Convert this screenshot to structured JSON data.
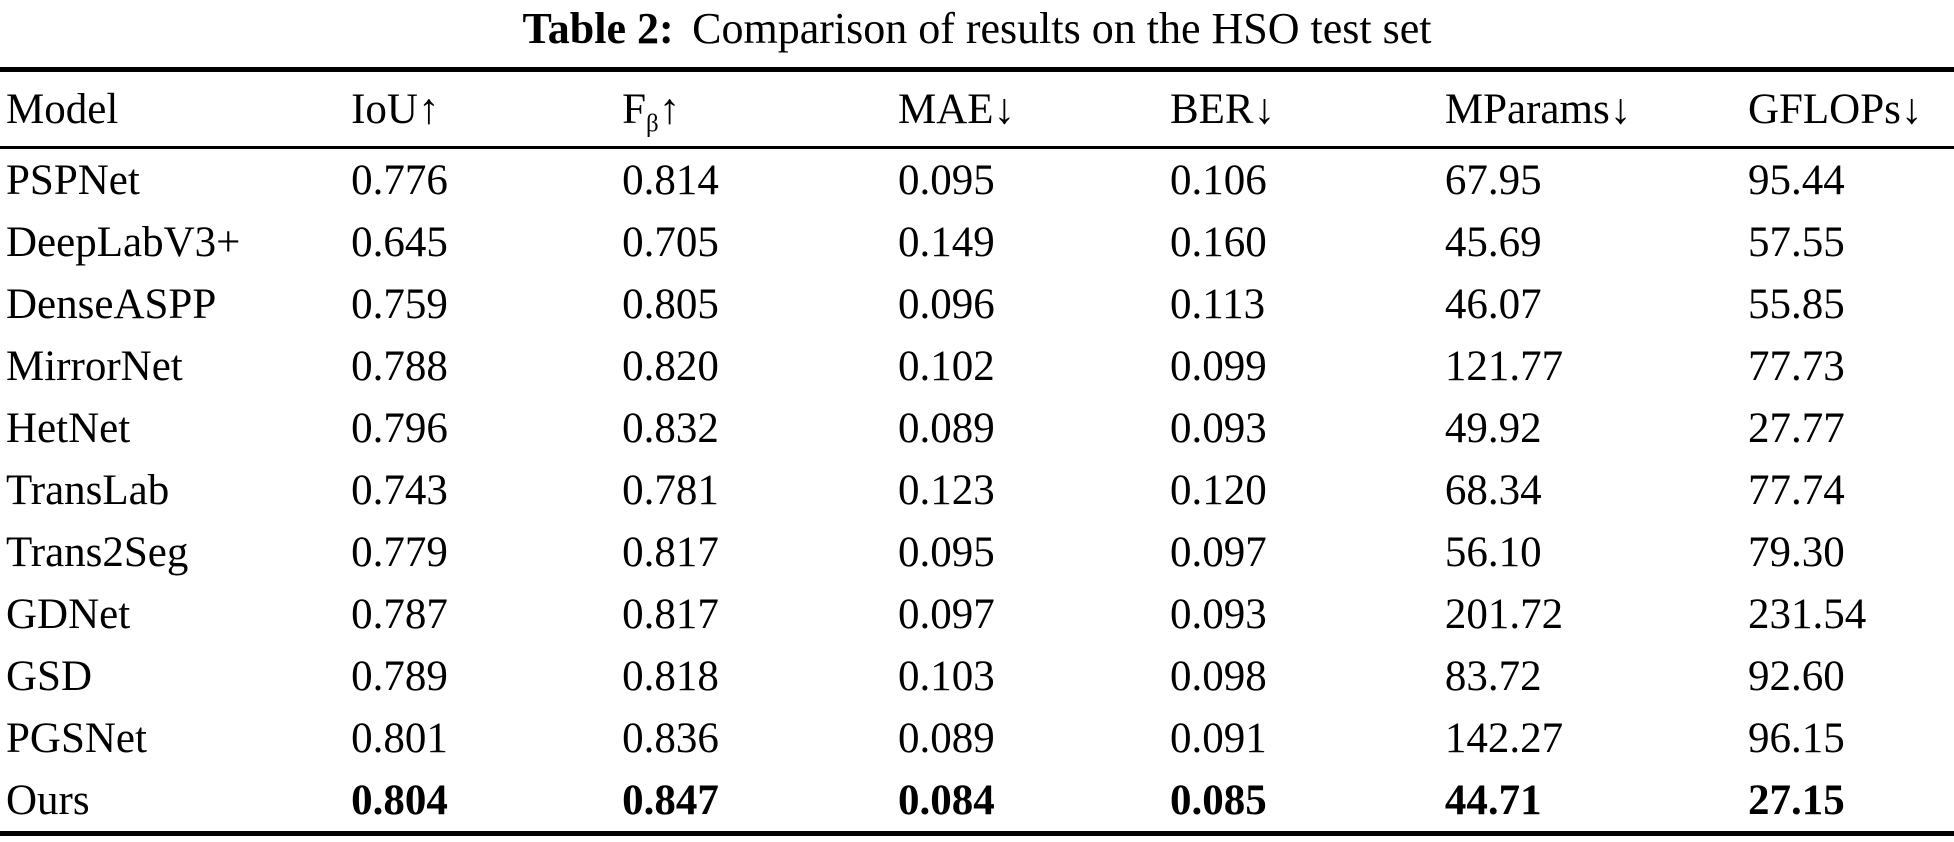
{
  "caption": {
    "label": "Table 2:",
    "text": "Comparison of results on the HSO test set"
  },
  "table": {
    "columns": [
      {
        "label": "Model",
        "sub": "",
        "arrow": ""
      },
      {
        "label": "IoU",
        "sub": "",
        "arrow": "↑"
      },
      {
        "label": "F",
        "sub": "β",
        "arrow": "↑"
      },
      {
        "label": "MAE",
        "sub": "",
        "arrow": "↓"
      },
      {
        "label": "BER",
        "sub": "",
        "arrow": "↓"
      },
      {
        "label": "MParams",
        "sub": "",
        "arrow": "↓"
      },
      {
        "label": "GFLOPs",
        "sub": "",
        "arrow": "↓"
      }
    ],
    "rows": [
      {
        "cells": [
          "PSPNet",
          "0.776",
          "0.814",
          "0.095",
          "0.106",
          "67.95",
          "95.44"
        ],
        "bold": false
      },
      {
        "cells": [
          "DeepLabV3+",
          "0.645",
          "0.705",
          "0.149",
          "0.160",
          "45.69",
          "57.55"
        ],
        "bold": false
      },
      {
        "cells": [
          "DenseASPP",
          "0.759",
          "0.805",
          "0.096",
          "0.113",
          "46.07",
          "55.85"
        ],
        "bold": false
      },
      {
        "cells": [
          "MirrorNet",
          "0.788",
          "0.820",
          "0.102",
          "0.099",
          "121.77",
          "77.73"
        ],
        "bold": false
      },
      {
        "cells": [
          "HetNet",
          "0.796",
          "0.832",
          "0.089",
          "0.093",
          "49.92",
          "27.77"
        ],
        "bold": false
      },
      {
        "cells": [
          "TransLab",
          "0.743",
          "0.781",
          "0.123",
          "0.120",
          "68.34",
          "77.74"
        ],
        "bold": false
      },
      {
        "cells": [
          "Trans2Seg",
          "0.779",
          "0.817",
          "0.095",
          "0.097",
          "56.10",
          "79.30"
        ],
        "bold": false
      },
      {
        "cells": [
          "GDNet",
          "0.787",
          "0.817",
          "0.097",
          "0.093",
          "201.72",
          "231.54"
        ],
        "bold": false
      },
      {
        "cells": [
          "GSD",
          "0.789",
          "0.818",
          "0.103",
          "0.098",
          "83.72",
          "92.60"
        ],
        "bold": false
      },
      {
        "cells": [
          "PGSNet",
          "0.801",
          "0.836",
          "0.089",
          "0.091",
          "142.27",
          "96.15"
        ],
        "bold": false
      },
      {
        "cells": [
          "Ours",
          "0.804",
          "0.847",
          "0.084",
          "0.085",
          "44.71",
          "27.15"
        ],
        "bold": true
      }
    ]
  },
  "colors": {
    "text": "#000000",
    "background": "#ffffff",
    "rule": "#000000"
  }
}
